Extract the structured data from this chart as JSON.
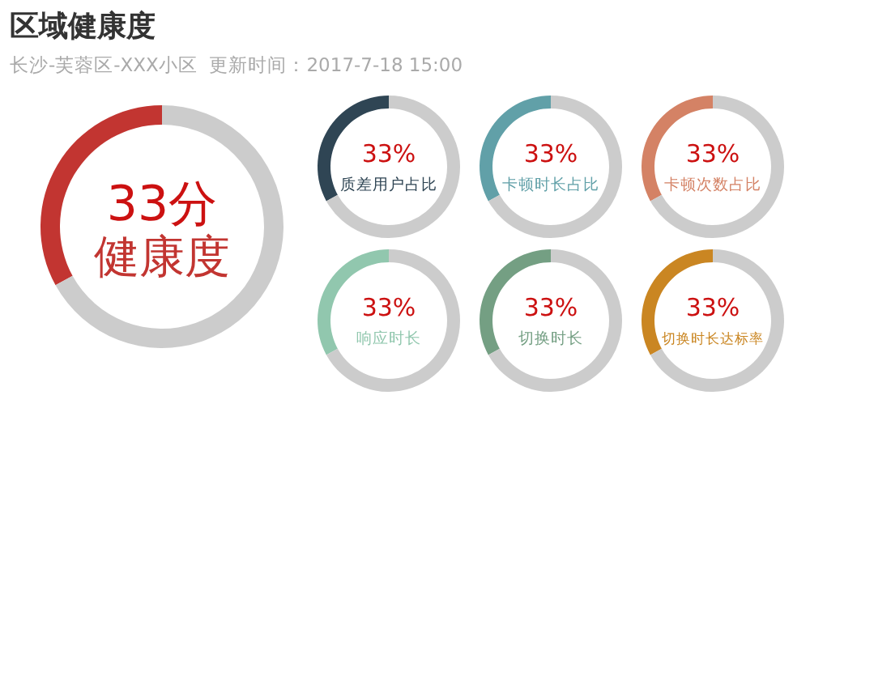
{
  "chart_data": [
    {
      "type": "donut",
      "title": "区域健康度",
      "subtitle": "长沙-芙蓉区-XXX小区  更新时间：2017-7-18 15:00",
      "categories": [
        null,
        null
      ],
      "values": [
        33,
        67
      ],
      "colors": [
        "#c23531",
        "#cccccc"
      ],
      "value_labels": [
        "33分",
        null
      ],
      "annotations": [
        "健康度"
      ]
    },
    {
      "type": "donut",
      "title": "质差用户占比",
      "categories": [
        null,
        null
      ],
      "values": [
        33,
        67
      ],
      "colors": [
        "#2f4554",
        "#cccccc"
      ],
      "value_labels": [
        "33%",
        null
      ]
    },
    {
      "type": "donut",
      "title": "卡顿时长占比",
      "categories": [
        null,
        null
      ],
      "values": [
        33,
        67
      ],
      "colors": [
        "#61a0a8",
        "#cccccc"
      ],
      "value_labels": [
        "33%",
        null
      ]
    },
    {
      "type": "donut",
      "title": "卡顿次数占比",
      "categories": [
        null,
        null
      ],
      "values": [
        33,
        67
      ],
      "colors": [
        "#d48265",
        "#cccccc"
      ],
      "value_labels": [
        "33%",
        null
      ]
    },
    {
      "type": "donut",
      "title": "响应时长",
      "categories": [
        null,
        null
      ],
      "values": [
        33,
        67
      ],
      "colors": [
        "#91c7ae",
        "#cccccc"
      ],
      "value_labels": [
        "33%",
        null
      ]
    },
    {
      "type": "donut",
      "title": "切换时长",
      "categories": [
        null,
        null
      ],
      "values": [
        33,
        67
      ],
      "colors": [
        "#749f83",
        "#cccccc"
      ],
      "value_labels": [
        "33%",
        null
      ]
    },
    {
      "type": "donut",
      "title": "切换时长达标率",
      "categories": [
        null,
        null
      ],
      "values": [
        33,
        67
      ],
      "colors": [
        "#ca8622",
        "#cccccc"
      ],
      "value_labels": [
        "33%",
        null
      ]
    }
  ]
}
